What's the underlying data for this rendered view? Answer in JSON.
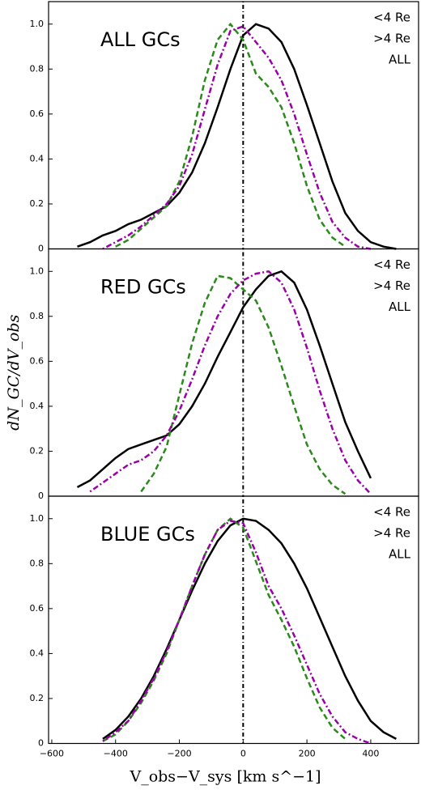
{
  "chart_data": [
    {
      "type": "line",
      "annotation": "ALL GCs",
      "annotation_color": "#000000",
      "x": [
        -520,
        -480,
        -440,
        -400,
        -360,
        -320,
        -280,
        -240,
        -200,
        -160,
        -120,
        -80,
        -40,
        0,
        40,
        80,
        120,
        160,
        200,
        240,
        280,
        320,
        360,
        400,
        440,
        480
      ],
      "series": [
        {
          "name": "<4 Re",
          "color": "#000000",
          "values": [
            0.01,
            0.03,
            0.06,
            0.08,
            0.11,
            0.13,
            0.16,
            0.19,
            0.25,
            0.34,
            0.47,
            0.63,
            0.8,
            0.95,
            1.0,
            0.98,
            0.92,
            0.8,
            0.64,
            0.47,
            0.3,
            0.16,
            0.08,
            0.03,
            0.01,
            0.0
          ]
        },
        {
          "name": ">4 Re",
          "color": "#2a8a1a",
          "values": [
            null,
            null,
            null,
            0.01,
            0.04,
            0.09,
            0.14,
            0.19,
            0.3,
            0.5,
            0.75,
            0.93,
            1.0,
            0.93,
            0.78,
            0.72,
            0.63,
            0.47,
            0.28,
            0.13,
            0.05,
            0.01,
            null,
            null,
            null,
            null
          ]
        },
        {
          "name": "ALL",
          "color": "#9a00a8",
          "values": [
            null,
            null,
            0.0,
            0.03,
            0.06,
            0.1,
            0.15,
            0.2,
            0.28,
            0.42,
            0.62,
            0.82,
            0.97,
            0.99,
            0.92,
            0.85,
            0.75,
            0.6,
            0.42,
            0.25,
            0.12,
            0.05,
            0.01,
            0.0,
            null,
            null
          ]
        }
      ],
      "xlim": [
        -610,
        550
      ],
      "ylim": [
        0,
        1.1
      ],
      "yticks": [
        0,
        0.2,
        0.4,
        0.6,
        0.8,
        {
          "value": 1,
          "label": "1.0"
        }
      ],
      "vline": 0
    },
    {
      "type": "line",
      "annotation": "RED GCs",
      "annotation_color": "#ff0000",
      "ylabel": "dN_GC/dV_obs",
      "x": [
        -520,
        -480,
        -440,
        -400,
        -360,
        -320,
        -280,
        -240,
        -200,
        -160,
        -120,
        -80,
        -40,
        0,
        40,
        80,
        120,
        160,
        200,
        240,
        280,
        320,
        360,
        400,
        440,
        480
      ],
      "series": [
        {
          "name": "<4 Re",
          "color": "#000000",
          "values": [
            0.04,
            0.07,
            0.12,
            0.17,
            0.21,
            0.23,
            0.25,
            0.27,
            0.32,
            0.4,
            0.5,
            0.62,
            0.73,
            0.84,
            0.92,
            0.98,
            1.0,
            0.95,
            0.83,
            0.67,
            0.5,
            0.33,
            0.2,
            0.08,
            null,
            null
          ]
        },
        {
          "name": ">4 Re",
          "color": "#2a8a1a",
          "values": [
            null,
            null,
            null,
            null,
            null,
            0.02,
            0.1,
            0.22,
            0.45,
            0.68,
            0.86,
            0.98,
            0.97,
            0.92,
            0.87,
            0.75,
            0.58,
            0.4,
            0.23,
            0.12,
            0.05,
            0.01,
            null,
            null,
            null,
            null
          ]
        },
        {
          "name": "ALL",
          "color": "#9a00a8",
          "values": [
            null,
            0.02,
            0.06,
            0.1,
            0.14,
            0.16,
            0.2,
            0.27,
            0.38,
            0.52,
            0.67,
            0.8,
            0.9,
            0.96,
            0.99,
            1.0,
            0.95,
            0.83,
            0.66,
            0.47,
            0.3,
            0.16,
            0.07,
            0.01,
            null,
            null
          ]
        }
      ],
      "xlim": [
        -610,
        550
      ],
      "ylim": [
        0,
        1.1
      ],
      "yticks": [
        0,
        0.2,
        0.4,
        0.6,
        0.8,
        {
          "value": 1,
          "label": "1.0"
        }
      ],
      "vline": 0
    },
    {
      "type": "line",
      "annotation": "BLUE GCs",
      "annotation_color": "#0000ee",
      "xlabel": "V_obs−V_sys [km s^−1]",
      "x": [
        -520,
        -480,
        -440,
        -400,
        -360,
        -320,
        -280,
        -240,
        -200,
        -160,
        -120,
        -80,
        -40,
        0,
        40,
        80,
        120,
        160,
        200,
        240,
        280,
        320,
        360,
        400,
        440,
        480
      ],
      "series": [
        {
          "name": "<4 Re",
          "color": "#000000",
          "values": [
            null,
            null,
            0.02,
            0.06,
            0.12,
            0.2,
            0.3,
            0.42,
            0.55,
            0.68,
            0.8,
            0.9,
            0.97,
            1.0,
            0.99,
            0.95,
            0.89,
            0.8,
            0.69,
            0.56,
            0.43,
            0.3,
            0.19,
            0.1,
            0.05,
            0.02
          ]
        },
        {
          "name": ">4 Re",
          "color": "#2a8a1a",
          "values": [
            null,
            null,
            0.01,
            0.04,
            0.1,
            0.18,
            0.28,
            0.4,
            0.55,
            0.7,
            0.84,
            0.95,
            1.0,
            0.96,
            0.81,
            0.66,
            0.55,
            0.43,
            0.29,
            0.16,
            0.07,
            0.02,
            null,
            null,
            null,
            null
          ]
        },
        {
          "name": "ALL",
          "color": "#9a00a8",
          "values": [
            null,
            null,
            0.01,
            0.05,
            0.1,
            0.19,
            0.29,
            0.41,
            0.55,
            0.7,
            0.84,
            0.95,
            0.99,
            0.98,
            0.85,
            0.7,
            0.6,
            0.48,
            0.35,
            0.22,
            0.12,
            0.05,
            0.02,
            0.0,
            null,
            null
          ]
        }
      ],
      "xlim": [
        -610,
        550
      ],
      "ylim": [
        0,
        1.1
      ],
      "yticks": [
        0,
        0.2,
        0.4,
        0.6,
        0.8,
        {
          "value": 1,
          "label": "1.0"
        }
      ],
      "xticks": [
        {
          "value": -600,
          "label": "−600"
        },
        {
          "value": -400,
          "label": "−400"
        },
        {
          "value": -200,
          "label": "−200"
        },
        0,
        200,
        400
      ],
      "vline": 0
    }
  ]
}
